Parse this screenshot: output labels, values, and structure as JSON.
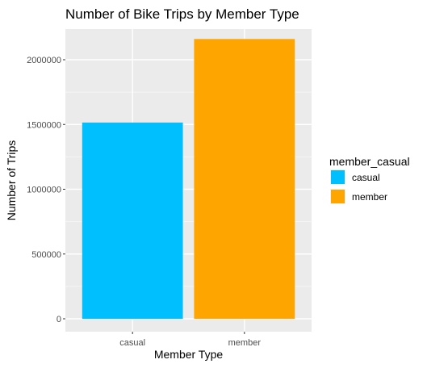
{
  "chart_data": {
    "type": "bar",
    "title": "Number of Bike Trips by Member Type",
    "xlabel": "Member Type",
    "ylabel": "Number of Trips",
    "categories": [
      "casual",
      "member"
    ],
    "values": [
      1515000,
      2160000
    ],
    "ylim": [
      0,
      2300000
    ],
    "y_ticks": [
      0,
      500000,
      1000000,
      1500000,
      2000000
    ],
    "y_tick_labels": [
      "0",
      "500000",
      "1000000",
      "1500000",
      "2000000"
    ],
    "colors": [
      "#00bfff",
      "#ffa500"
    ],
    "panel_background": "#ebebeb",
    "grid": true,
    "legend": {
      "title": "member_casual",
      "position": "right",
      "entries": [
        "casual",
        "member"
      ]
    }
  }
}
